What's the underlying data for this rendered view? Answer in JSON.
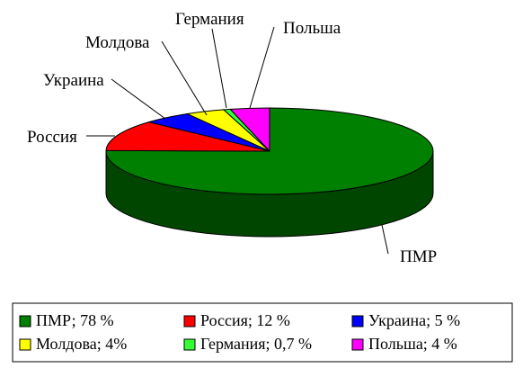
{
  "chart_data": {
    "type": "pie",
    "style": "3d",
    "title": "",
    "categories": [
      "ПМР",
      "Россия",
      "Украина",
      "Молдова",
      "Германия",
      "Польша"
    ],
    "values": [
      78,
      12,
      5,
      4,
      0.7,
      4
    ],
    "colors": [
      "#008000",
      "#FF0000",
      "#0000FF",
      "#FFFF00",
      "#33FF33",
      "#FF00FF"
    ],
    "slice_labels": [
      "ПМР",
      "Россия",
      "Украина",
      "Молдова",
      "Германия",
      "Польша"
    ],
    "legend": {
      "position": "bottom",
      "entries": [
        "ПМР; 78 %",
        "Россия; 12 %",
        "Украина; 5 %",
        "Молдова; 4%",
        "Германия; 0,7 %",
        "Польша; 4 %"
      ]
    }
  }
}
